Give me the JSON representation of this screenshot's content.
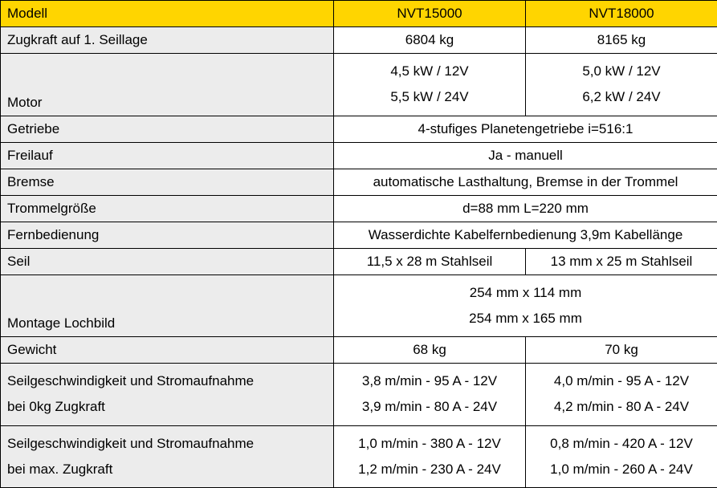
{
  "header": {
    "label": "Modell",
    "col1": "NVT15000",
    "col2": "NVT18000"
  },
  "rows": {
    "zugkraft": {
      "label": "Zugkraft auf 1. Seillage",
      "v1": "6804 kg",
      "v2": "8165 kg"
    },
    "motor": {
      "label": "Motor",
      "v1a": "4,5 kW / 12V",
      "v1b": "5,5 kW / 24V",
      "v2a": "5,0 kW / 12V",
      "v2b": "6,2 kW / 24V"
    },
    "getriebe": {
      "label": "Getriebe",
      "v": "4-stufiges Planetengetriebe i=516:1"
    },
    "freilauf": {
      "label": "Freilauf",
      "v": "Ja - manuell"
    },
    "bremse": {
      "label": "Bremse",
      "v": "automatische Lasthaltung, Bremse in der Trommel"
    },
    "trommel": {
      "label": "Trommelgröße",
      "v": "d=88 mm L=220 mm"
    },
    "fernbedienung": {
      "label": "Fernbedienung",
      "v": "Wasserdichte Kabelfernbedienung 3,9m Kabellänge"
    },
    "seil": {
      "label": "Seil",
      "v1": "11,5 x 28 m Stahlseil",
      "v2": "13 mm x 25 m Stahlseil"
    },
    "montage": {
      "label": "Montage Lochbild",
      "va": "254 mm x 114 mm",
      "vb": "254 mm x 165 mm"
    },
    "gewicht": {
      "label": "Gewicht",
      "v1": "68 kg",
      "v2": "70 kg"
    },
    "speed0": {
      "label_a": "Seilgeschwindigkeit und Stromaufnahme",
      "label_b": "bei 0kg Zugkraft",
      "v1a": "3,8 m/min - 95 A - 12V",
      "v1b": "3,9 m/min - 80 A - 24V",
      "v2a": "4,0 m/min - 95 A - 12V",
      "v2b": "4,2 m/min - 80 A - 24V"
    },
    "speedmax": {
      "label_a": "Seilgeschwindigkeit und Stromaufnahme",
      "label_b": "bei max. Zugkraft",
      "v1a": "1,0 m/min - 380 A - 12V",
      "v1b": "1,2 m/min - 230 A - 24V",
      "v2a": "0,8 m/min - 420 A - 12V",
      "v2b": "1,0 m/min - 260 A - 24V"
    }
  }
}
